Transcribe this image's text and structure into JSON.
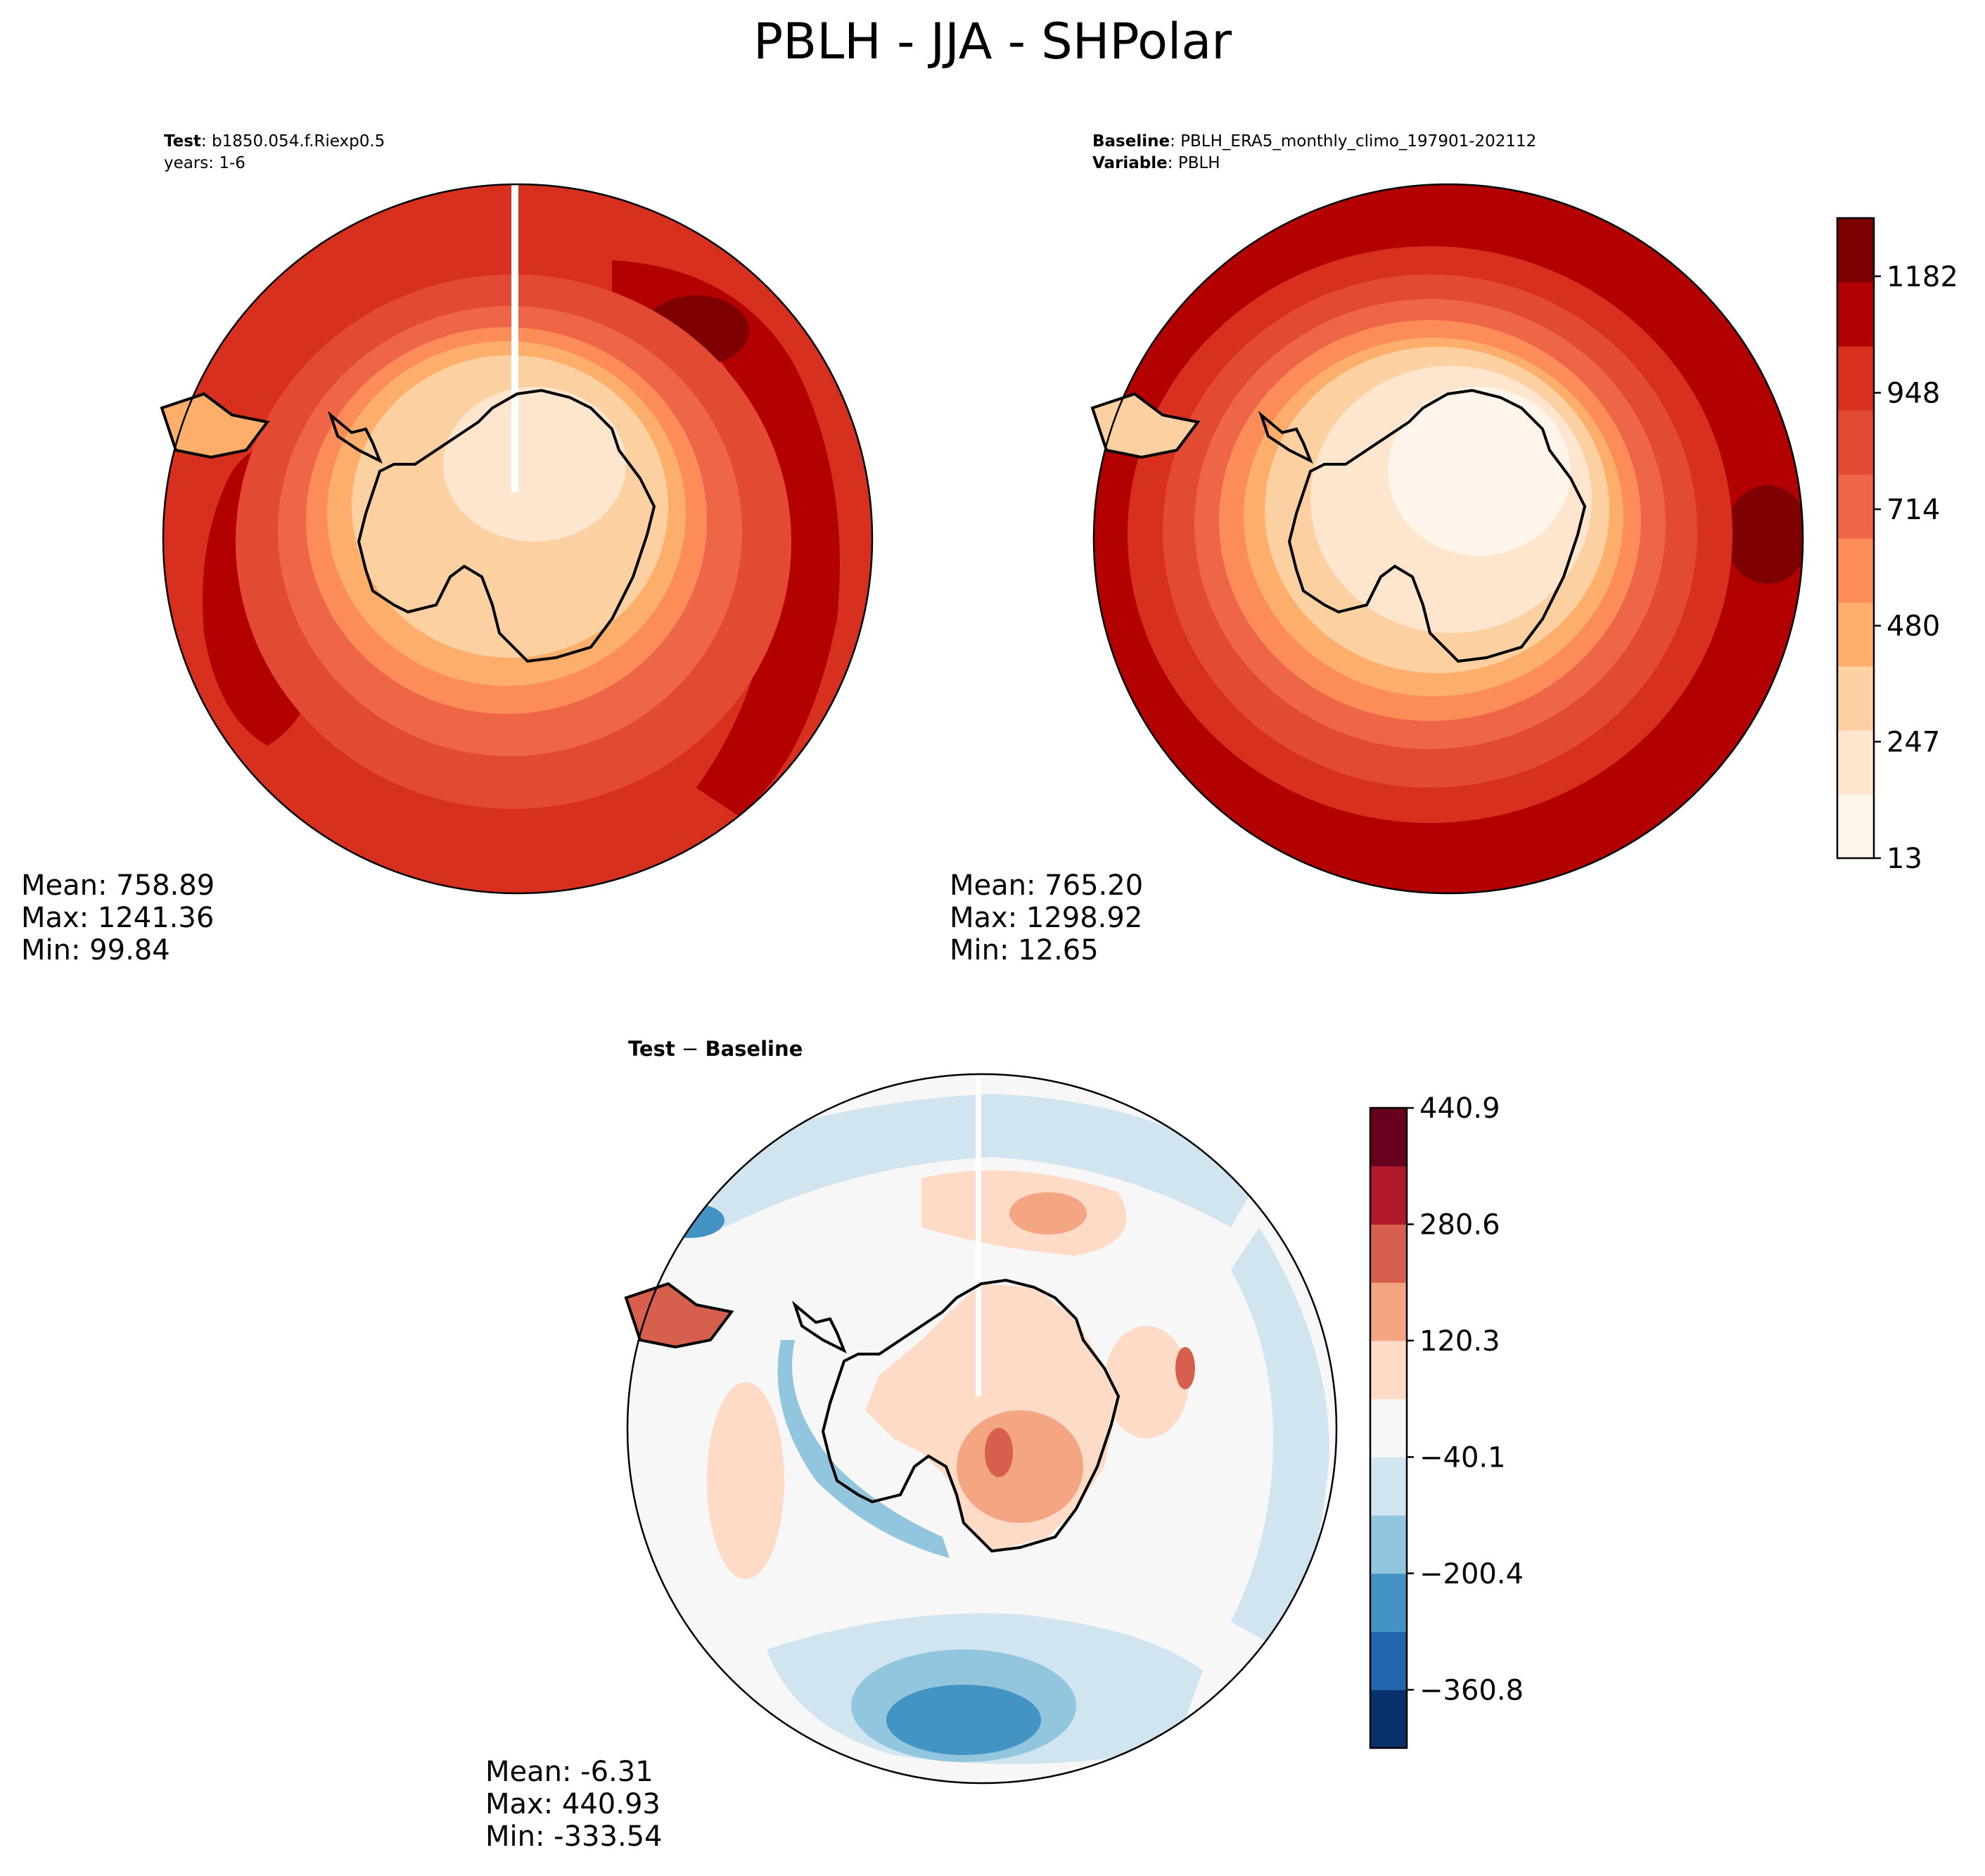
{
  "title": "PBLH - JJA - SHPolar",
  "colors": {
    "abs_levels": [
      "#fff5eb",
      "#fee6ce",
      "#fdd0a2",
      "#fdae6b",
      "#fc8d59",
      "#ef6548",
      "#e34a33",
      "#d7301f",
      "#b30000",
      "#7f0000"
    ],
    "diff_levels": [
      "#08306b",
      "#2166ac",
      "#4393c3",
      "#92c5de",
      "#d1e5f0",
      "#f7f7f7",
      "#fddbc7",
      "#f4a582",
      "#d6604d",
      "#b2182b",
      "#67001f"
    ]
  },
  "panels": {
    "test": {
      "label_key": "Test",
      "label_value": "b1850.054.f.Riexp0.5",
      "label_line2": "years: 1-6",
      "stats": {
        "mean": "Mean: 758.89",
        "max": "Max: 1241.36",
        "min": "Min: 99.84"
      }
    },
    "baseline": {
      "label_key": "Baseline",
      "label_value": "PBLH_ERA5_monthly_climo_197901-202112",
      "label_key2": "Variable",
      "label_value2": "PBLH",
      "stats": {
        "mean": "Mean: 765.20",
        "max": "Max: 1298.92",
        "min": "Min: 12.65"
      }
    },
    "diff": {
      "label_key": "Test",
      "label_sep": " − ",
      "label_key2": "Baseline",
      "stats": {
        "mean": "Mean: -6.31",
        "max": "Max: 440.93",
        "min": "Min: -333.54"
      }
    }
  },
  "chart_data": [
    {
      "type": "heatmap",
      "name": "Test",
      "projection": "South Polar Stereographic",
      "variable": "PBLH",
      "season": "JJA",
      "mean": 758.89,
      "max": 1241.36,
      "min": 99.84
    },
    {
      "type": "heatmap",
      "name": "Baseline",
      "projection": "South Polar Stereographic",
      "variable": "PBLH",
      "season": "JJA",
      "mean": 765.2,
      "max": 1298.92,
      "min": 12.65,
      "colorbar": {
        "ticks": [
          13,
          247,
          480,
          714,
          948,
          1182
        ],
        "range": [
          13,
          1299
        ]
      }
    },
    {
      "type": "heatmap",
      "name": "Test - Baseline",
      "projection": "South Polar Stereographic",
      "mean": -6.31,
      "max": 440.93,
      "min": -333.54,
      "colorbar": {
        "ticks": [
          -360.8,
          -200.4,
          -40.1,
          120.3,
          280.6,
          440.9
        ],
        "tick_labels": [
          "−360.8",
          "−200.4",
          "−40.1",
          "120.3",
          "280.6",
          "440.9"
        ],
        "range": [
          -441,
          441
        ]
      }
    }
  ]
}
